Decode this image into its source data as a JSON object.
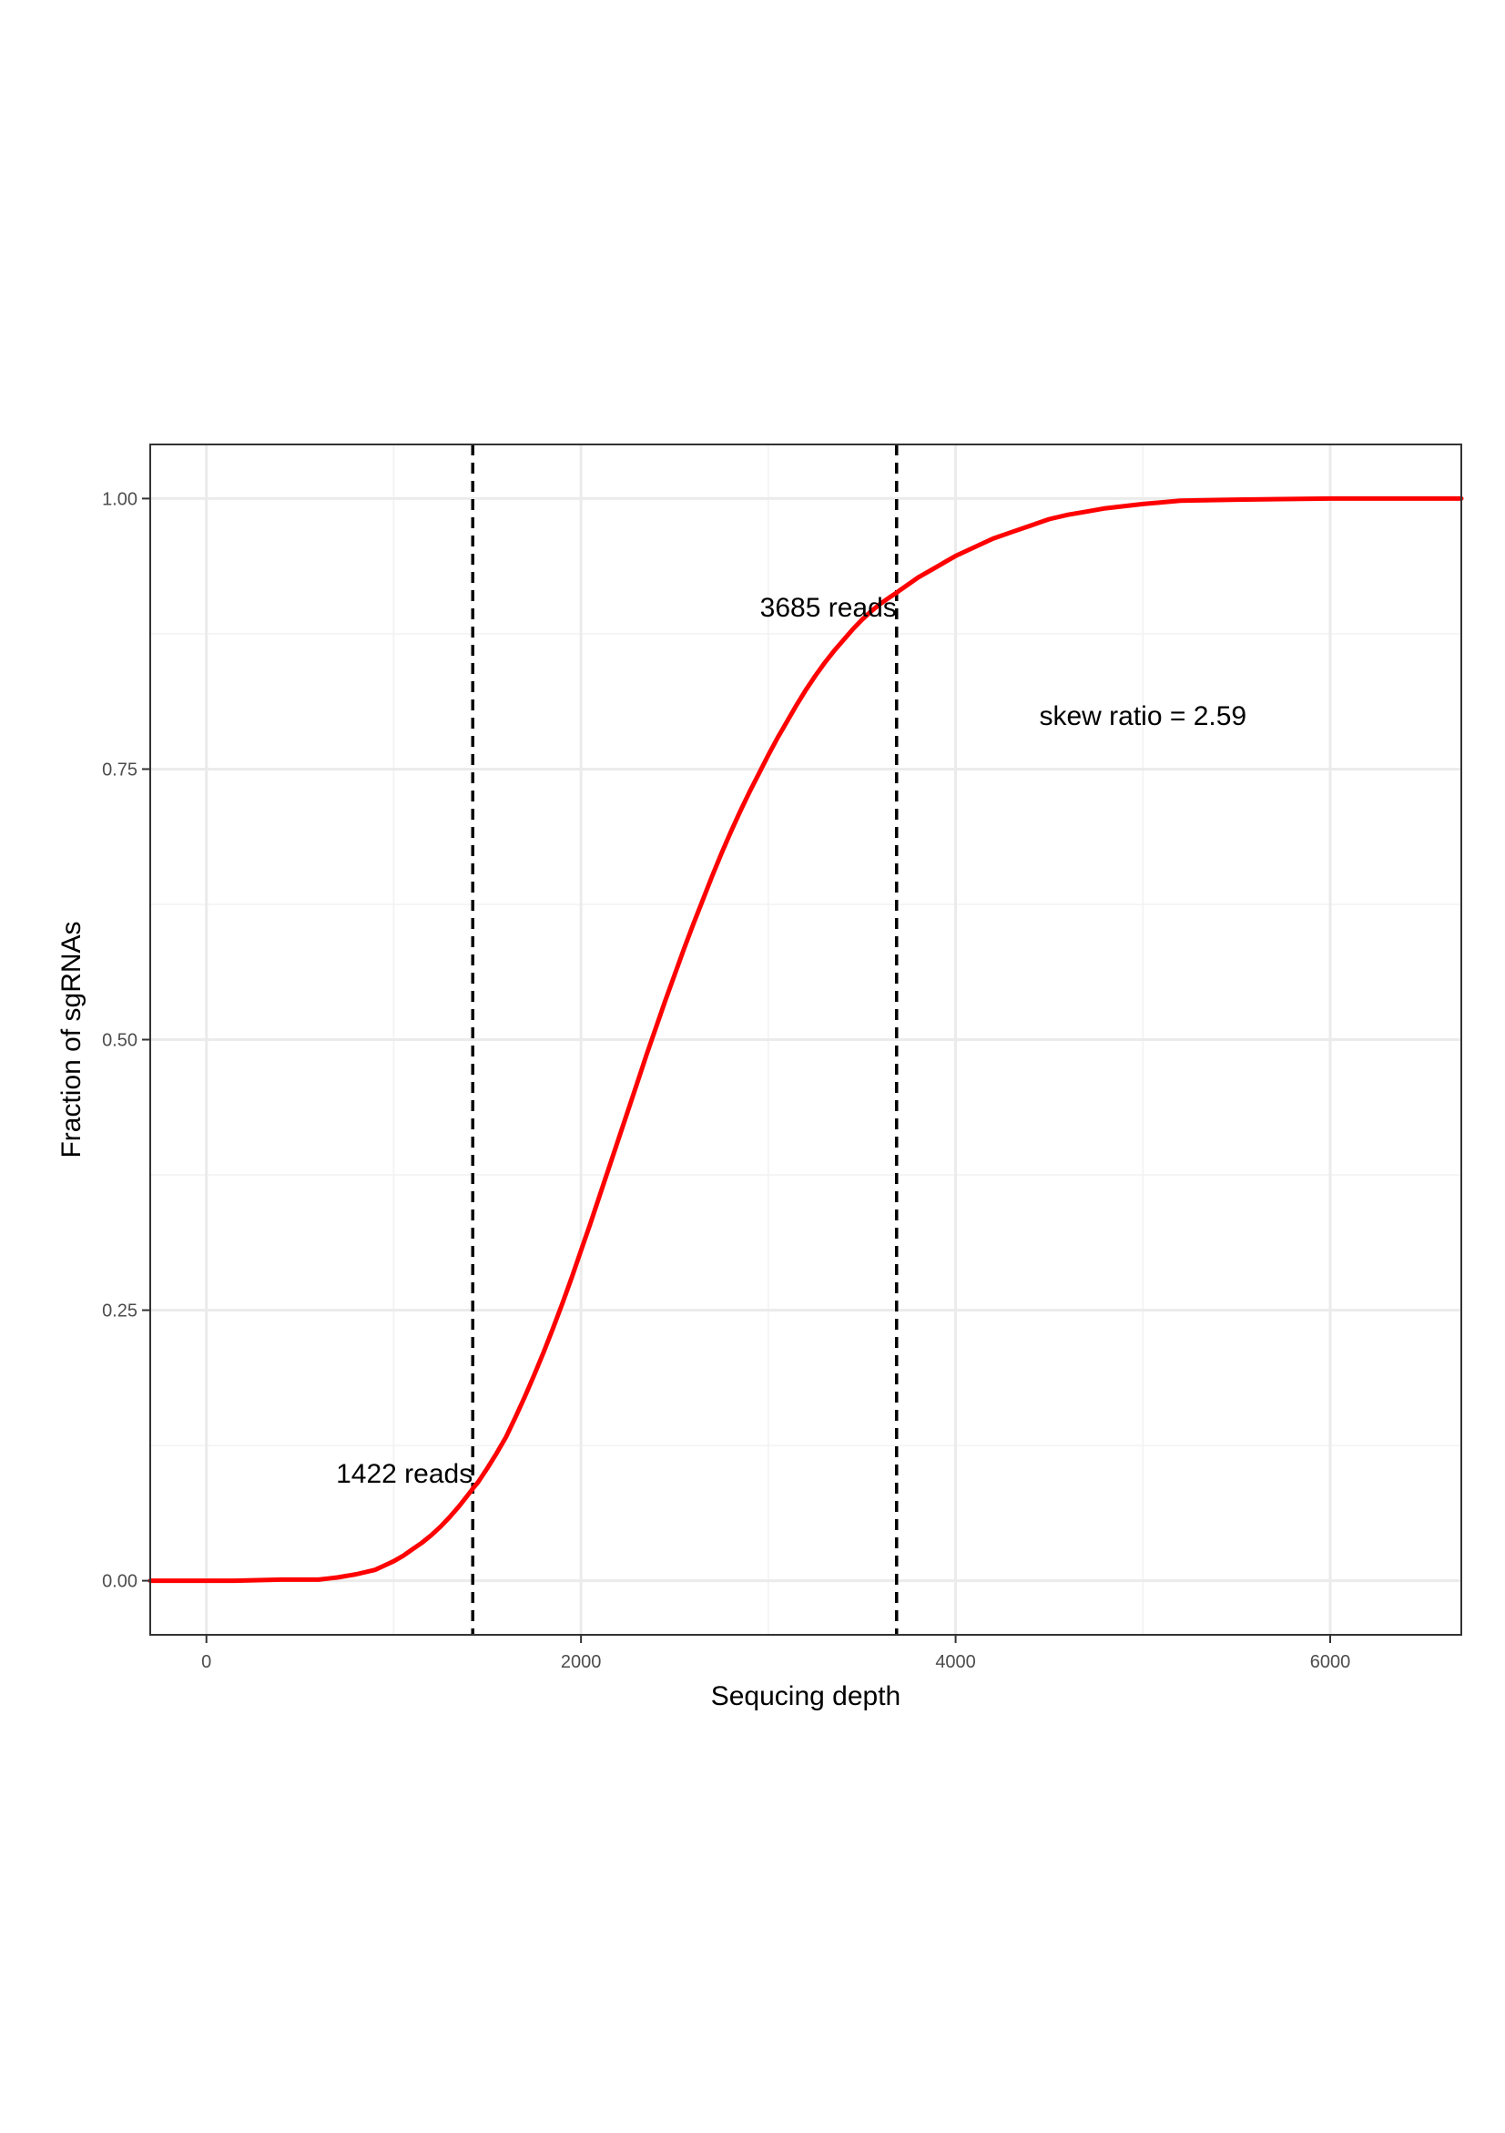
{
  "chart_data": {
    "type": "line",
    "title": "",
    "xlabel": "Sequcing depth",
    "ylabel": "Fraction of sgRNAs",
    "xlim": [
      -300,
      6700
    ],
    "ylim": [
      -0.05,
      1.05
    ],
    "x_ticks": [
      {
        "value": 0,
        "label": "0"
      },
      {
        "value": 2000,
        "label": "2000"
      },
      {
        "value": 4000,
        "label": "4000"
      },
      {
        "value": 6000,
        "label": "6000"
      }
    ],
    "y_ticks": [
      {
        "value": 0,
        "label": "0.00"
      },
      {
        "value": 0.25,
        "label": "0.25"
      },
      {
        "value": 0.5,
        "label": "0.50"
      },
      {
        "value": 0.75,
        "label": "0.75"
      },
      {
        "value": 1,
        "label": "1.00"
      }
    ],
    "x_minor_ticks": [
      1000,
      3000,
      5000
    ],
    "y_minor_ticks": [
      0.125,
      0.375,
      0.625,
      0.875
    ],
    "grid": true,
    "series": [
      {
        "color": "#ff0000",
        "x": [
          -300,
          150,
          400,
          500,
          600,
          650,
          700,
          800,
          900,
          950,
          1000,
          1050,
          1100,
          1150,
          1200,
          1250,
          1300,
          1350,
          1400,
          1422,
          1450,
          1500,
          1550,
          1600,
          1650,
          1700,
          1750,
          1800,
          1850,
          1900,
          1950,
          2000,
          2050,
          2100,
          2150,
          2200,
          2250,
          2300,
          2350,
          2400,
          2450,
          2500,
          2550,
          2600,
          2650,
          2700,
          2750,
          2800,
          2850,
          2900,
          2950,
          3000,
          3050,
          3100,
          3150,
          3200,
          3250,
          3300,
          3350,
          3400,
          3450,
          3500,
          3550,
          3600,
          3650,
          3685,
          3700,
          3750,
          3800,
          3850,
          3900,
          3950,
          4000,
          4050,
          4100,
          4150,
          4200,
          4300,
          4400,
          4500,
          4600,
          4700,
          4800,
          5000,
          5200,
          5500,
          6000,
          6700
        ],
        "y": [
          0.0,
          0.0,
          0.001,
          0.001,
          0.001,
          0.002,
          0.003,
          0.006,
          0.01,
          0.014,
          0.018,
          0.023,
          0.029,
          0.035,
          0.042,
          0.05,
          0.059,
          0.069,
          0.08,
          0.085,
          0.091,
          0.104,
          0.118,
          0.133,
          0.151,
          0.17,
          0.19,
          0.211,
          0.233,
          0.256,
          0.28,
          0.305,
          0.33,
          0.356,
          0.382,
          0.408,
          0.434,
          0.46,
          0.486,
          0.511,
          0.536,
          0.56,
          0.584,
          0.607,
          0.629,
          0.651,
          0.672,
          0.692,
          0.711,
          0.729,
          0.746,
          0.763,
          0.779,
          0.794,
          0.809,
          0.823,
          0.836,
          0.848,
          0.859,
          0.869,
          0.879,
          0.888,
          0.896,
          0.903,
          0.909,
          0.913,
          0.915,
          0.921,
          0.927,
          0.932,
          0.937,
          0.942,
          0.947,
          0.951,
          0.955,
          0.959,
          0.963,
          0.969,
          0.975,
          0.981,
          0.985,
          0.988,
          0.991,
          0.995,
          0.998,
          0.999,
          1.0,
          1.0
        ]
      }
    ],
    "vlines": [
      {
        "x": 1422,
        "style": "dashed",
        "color": "#000000"
      },
      {
        "x": 3685,
        "style": "dashed",
        "color": "#000000"
      }
    ],
    "annotations": [
      {
        "text": "1422 reads",
        "x": 1422,
        "y": 0.1,
        "anchor": "end"
      },
      {
        "text": "3685 reads",
        "x": 3685,
        "y": 0.9,
        "anchor": "end"
      },
      {
        "text": "skew ratio = 2.59",
        "x": 5000,
        "y": 0.8,
        "anchor": "middle"
      }
    ]
  }
}
